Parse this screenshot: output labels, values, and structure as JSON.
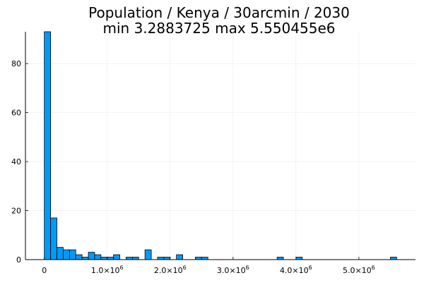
{
  "chart_data": {
    "type": "bar",
    "title_line1": "Population / Kenya / 30arcmin / 2030",
    "title_line2": "min 3.2883725  max 5.550455e6",
    "xlabel": "",
    "ylabel": "",
    "bin_width": 100000,
    "bin_starts": [
      0,
      100000,
      200000,
      300000,
      400000,
      500000,
      600000,
      700000,
      800000,
      900000,
      1000000,
      1100000,
      1200000,
      1300000,
      1400000,
      1500000,
      1600000,
      1700000,
      1800000,
      1900000,
      2000000,
      2100000,
      2200000,
      2300000,
      2400000,
      2500000,
      2600000,
      2700000,
      2800000,
      2900000,
      3000000,
      3100000,
      3200000,
      3300000,
      3400000,
      3500000,
      3600000,
      3700000,
      3800000,
      3900000,
      4000000,
      4100000,
      4200000,
      4300000,
      4400000,
      4500000,
      4600000,
      4700000,
      4800000,
      4900000,
      5000000,
      5100000,
      5200000,
      5300000,
      5400000,
      5500000
    ],
    "counts": [
      93,
      17,
      5,
      4,
      4,
      2,
      1,
      3,
      2,
      1,
      1,
      2,
      0,
      1,
      1,
      0,
      4,
      0,
      1,
      1,
      0,
      2,
      0,
      0,
      1,
      1,
      0,
      0,
      0,
      0,
      0,
      0,
      0,
      0,
      0,
      0,
      0,
      1,
      0,
      0,
      1,
      0,
      0,
      0,
      0,
      0,
      0,
      0,
      0,
      0,
      0,
      0,
      0,
      0,
      0,
      1
    ],
    "xlim": [
      -300000,
      5900000
    ],
    "ylim": [
      0,
      93
    ],
    "x_ticks": [
      {
        "value": 0,
        "mantissa": "0",
        "exponent": ""
      },
      {
        "value": 1000000,
        "mantissa": "1.0×10",
        "exponent": "6"
      },
      {
        "value": 2000000,
        "mantissa": "2.0×10",
        "exponent": "6"
      },
      {
        "value": 3000000,
        "mantissa": "3.0×10",
        "exponent": "6"
      },
      {
        "value": 4000000,
        "mantissa": "4.0×10",
        "exponent": "6"
      },
      {
        "value": 5000000,
        "mantissa": "5.0×10",
        "exponent": "6"
      }
    ],
    "y_ticks": [
      0,
      20,
      40,
      60,
      80
    ],
    "grid": true,
    "legend": "none",
    "bar_color": "#009af9",
    "bar_stroke": "#000000",
    "grid_color": "#ebebeb",
    "axis_color": "#000000"
  }
}
